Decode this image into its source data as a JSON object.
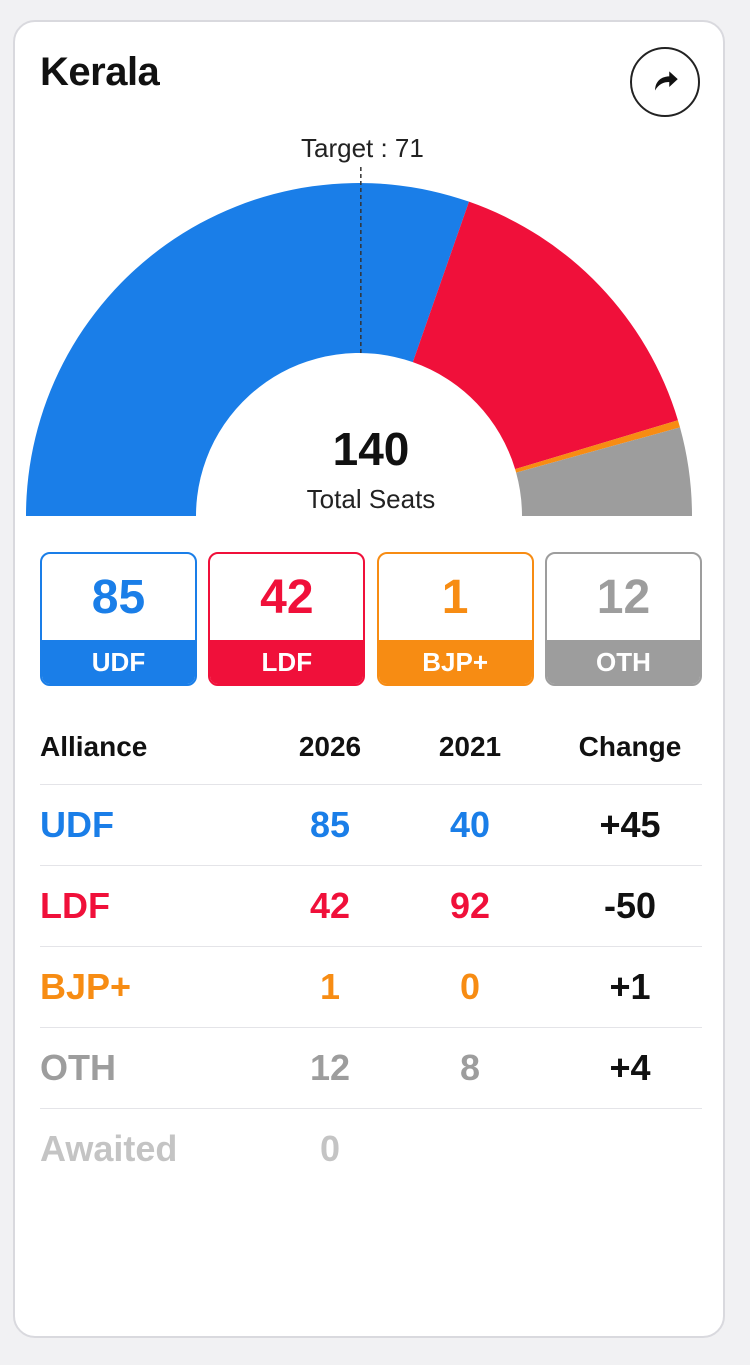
{
  "title": "Kerala",
  "colors": {
    "udf": "#1a7ee8",
    "ldf": "#f0103a",
    "bjp": "#f78c13",
    "oth": "#9d9d9d",
    "awaited": "#c4c4c4"
  },
  "icons": {
    "share": "share-arrow-icon"
  },
  "chart_data": {
    "type": "semi-donut",
    "title": "Kerala",
    "total_seats": 140,
    "total_value": "140",
    "total_label": "Total Seats",
    "target": 71,
    "target_label": "Target : 71",
    "slices": [
      {
        "name": "UDF",
        "value": 85,
        "color": "#1a7ee8"
      },
      {
        "name": "LDF",
        "value": 42,
        "color": "#f0103a"
      },
      {
        "name": "BJP+",
        "value": 1,
        "color": "#f78c13"
      },
      {
        "name": "OTH",
        "value": 12,
        "color": "#9d9d9d"
      }
    ]
  },
  "tiles": [
    {
      "value": "85",
      "label": "UDF"
    },
    {
      "value": "42",
      "label": "LDF"
    },
    {
      "value": "1",
      "label": "BJP+"
    },
    {
      "value": "12",
      "label": "OTH"
    }
  ],
  "table": {
    "headers": [
      "Alliance",
      "2026",
      "2021",
      "Change"
    ],
    "rows": [
      {
        "alliance": "UDF",
        "y2026": "85",
        "y2021": "40",
        "change": "+45"
      },
      {
        "alliance": "LDF",
        "y2026": "42",
        "y2021": "92",
        "change": "-50"
      },
      {
        "alliance": "BJP+",
        "y2026": "1",
        "y2021": "0",
        "change": "+1"
      },
      {
        "alliance": "OTH",
        "y2026": "12",
        "y2021": "8",
        "change": "+4"
      },
      {
        "alliance": "Awaited",
        "y2026": "0",
        "y2021": "",
        "change": ""
      }
    ]
  }
}
